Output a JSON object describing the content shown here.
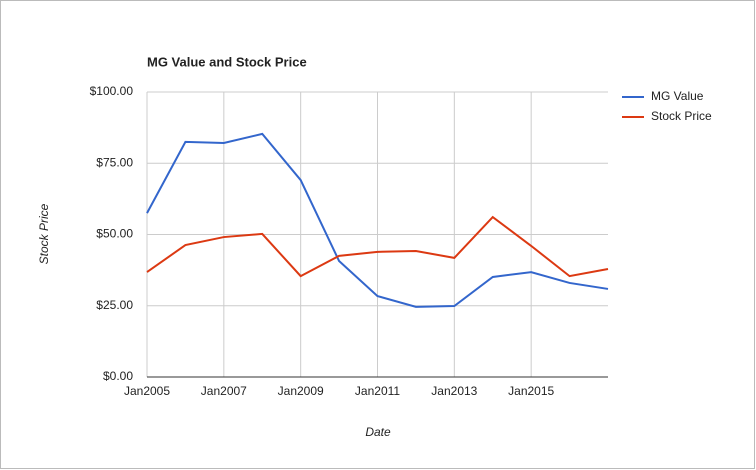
{
  "chart_data": {
    "type": "line",
    "title": "MG Value and Stock Price",
    "x_label": "Date",
    "y_label": "Stock Price",
    "x": [
      2005,
      2006,
      2007,
      2008,
      2009,
      2010,
      2011,
      2012,
      2013,
      2014,
      2015,
      2016,
      2017
    ],
    "series": [
      {
        "name": "MG Value",
        "color": "#3366cc",
        "values": [
          57.5,
          82.5,
          82.1,
          85.3,
          69.1,
          40.7,
          28.4,
          24.6,
          24.9,
          35.1,
          36.8,
          33.0,
          30.9
        ]
      },
      {
        "name": "Stock Price",
        "color": "#dc3912",
        "values": [
          36.8,
          46.3,
          49.1,
          50.2,
          35.4,
          42.5,
          43.9,
          44.2,
          41.8,
          56.1,
          46.0,
          35.4,
          37.9
        ]
      }
    ],
    "xlim": [
      2005,
      2017
    ],
    "xticks": [
      {
        "value": 2005,
        "label": "Jan2005"
      },
      {
        "value": 2007,
        "label": "Jan2007"
      },
      {
        "value": 2009,
        "label": "Jan2009"
      },
      {
        "value": 2011,
        "label": "Jan2011"
      },
      {
        "value": 2013,
        "label": "Jan2013"
      },
      {
        "value": 2015,
        "label": "Jan2015"
      }
    ],
    "ylim": [
      0,
      100
    ],
    "yticks": [
      {
        "value": 0,
        "label": "$0.00"
      },
      {
        "value": 25,
        "label": "$25.00"
      },
      {
        "value": 50,
        "label": "$50.00"
      },
      {
        "value": 75,
        "label": "$75.00"
      },
      {
        "value": 100,
        "label": "$100.00"
      }
    ],
    "grid": true,
    "legend": "right"
  }
}
